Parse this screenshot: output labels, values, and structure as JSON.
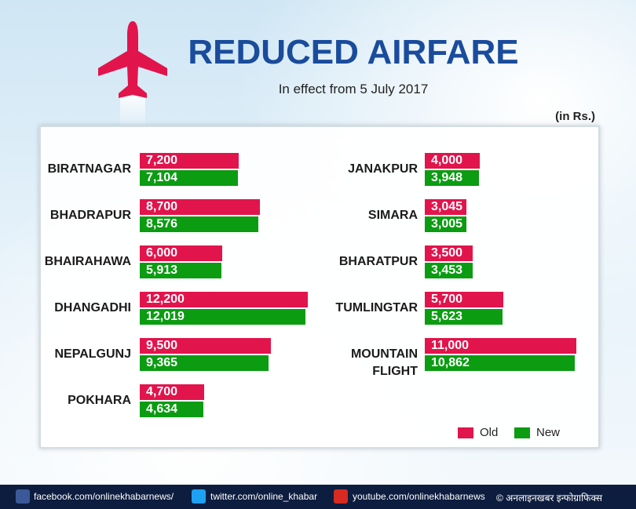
{
  "title": "REDUCED AIRFARE",
  "subtitle": "In effect from 5 July 2017",
  "unit_note": "(in Rs.)",
  "chart_data": {
    "type": "bar",
    "orientation": "horizontal",
    "categories": [
      "BIRATNAGAR",
      "BHADRAPUR",
      "BHAIRAHAWA",
      "DHANGADHI",
      "NEPALGUNJ",
      "POKHARA",
      "JANAKPUR",
      "SIMARA",
      "BHARATPUR",
      "TUMLINGTAR",
      "MOUNTAIN FLIGHT"
    ],
    "series": [
      {
        "name": "Old",
        "color": "#e2144c",
        "values": [
          7200,
          8700,
          6000,
          12200,
          9500,
          4700,
          4000,
          3045,
          3500,
          5700,
          11000
        ],
        "value_labels": [
          "7,200",
          "8,700",
          "6,000",
          "12,200",
          "9,500",
          "4,700",
          "4,000",
          "3,045",
          "3,500",
          "5,700",
          "11,000"
        ]
      },
      {
        "name": "New",
        "color": "#0b9c12",
        "values": [
          7104,
          8576,
          5913,
          12019,
          9365,
          4634,
          3948,
          3005,
          3453,
          5623,
          10862
        ],
        "value_labels": [
          "7,104",
          "8,576",
          "5,913",
          "12,019",
          "9,365",
          "4,634",
          "3,948",
          "3,005",
          "3,453",
          "5,623",
          "10,862"
        ]
      }
    ]
  },
  "footer": {
    "links": [
      "facebook.com/onlinekhabarnews/",
      "twitter.com/online_khabar",
      "youtube.com/onlinekhabarnews"
    ],
    "credit": "© अनलाइनखबर इन्फोग्राफिक्स"
  }
}
